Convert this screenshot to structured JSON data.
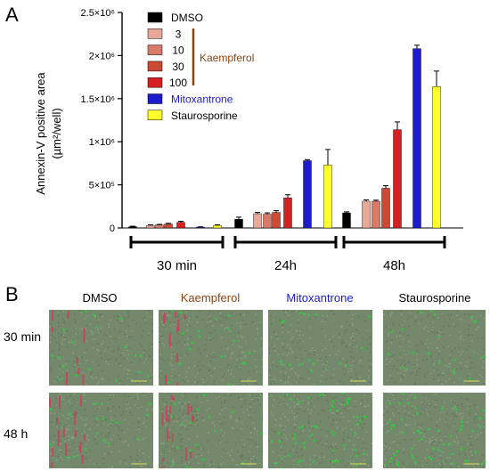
{
  "panel_a_letter": "A",
  "panel_b_letter": "B",
  "chart_data": {
    "type": "bar",
    "ylabel_line1": "Annexin-V positive area",
    "ylabel_line2": "(µm²/well)",
    "ylim": [
      0,
      2500000
    ],
    "yticks": [
      {
        "value": 0,
        "label": "0"
      },
      {
        "value": 500000,
        "label": "5×10⁵"
      },
      {
        "value": 1000000,
        "label": "1×10⁶"
      },
      {
        "value": 1500000,
        "label": "1.5×10⁶"
      },
      {
        "value": 2000000,
        "label": "2×10⁶"
      },
      {
        "value": 2500000,
        "label": "2.5×10⁶"
      }
    ],
    "groups": [
      "30 min",
      "24h",
      "48h"
    ],
    "legend_bracket_label": "Kaempferol",
    "series": [
      {
        "name": "DMSO",
        "color": "#000000",
        "values": [
          15000,
          100000,
          175000
        ],
        "errors": [
          5000,
          25000,
          12000
        ]
      },
      {
        "name": "3",
        "color": "#e8a898",
        "values": [
          30000,
          165000,
          310000
        ],
        "errors": [
          6000,
          15000,
          15000
        ]
      },
      {
        "name": "10",
        "color": "#d87a6a",
        "values": [
          35000,
          160000,
          310000
        ],
        "errors": [
          6000,
          15000,
          12000
        ]
      },
      {
        "name": "30",
        "color": "#cc4a35",
        "values": [
          45000,
          180000,
          460000
        ],
        "errors": [
          8000,
          20000,
          30000
        ]
      },
      {
        "name": "100",
        "color": "#d42020",
        "values": [
          65000,
          350000,
          1140000
        ],
        "errors": [
          12000,
          35000,
          90000
        ]
      },
      {
        "name": "Mitoxantrone",
        "color": "#1c1ccc",
        "values": [
          10000,
          780000,
          2080000
        ],
        "errors": [
          3000,
          12000,
          40000
        ]
      },
      {
        "name": "Staurosporine",
        "color": "#ffff2a",
        "values": [
          30000,
          730000,
          1640000
        ],
        "errors": [
          6000,
          180000,
          180000
        ]
      }
    ]
  },
  "panel_b": {
    "columns": [
      {
        "label": "DMSO",
        "color": "#000000"
      },
      {
        "label": "Kaempferol",
        "color": "#8b4513"
      },
      {
        "label": "Mitoxantrone",
        "color": "#1c1ccc"
      },
      {
        "label": "Staurosporine",
        "color": "#000000"
      }
    ],
    "rows": [
      "30 min",
      "48 h"
    ]
  }
}
